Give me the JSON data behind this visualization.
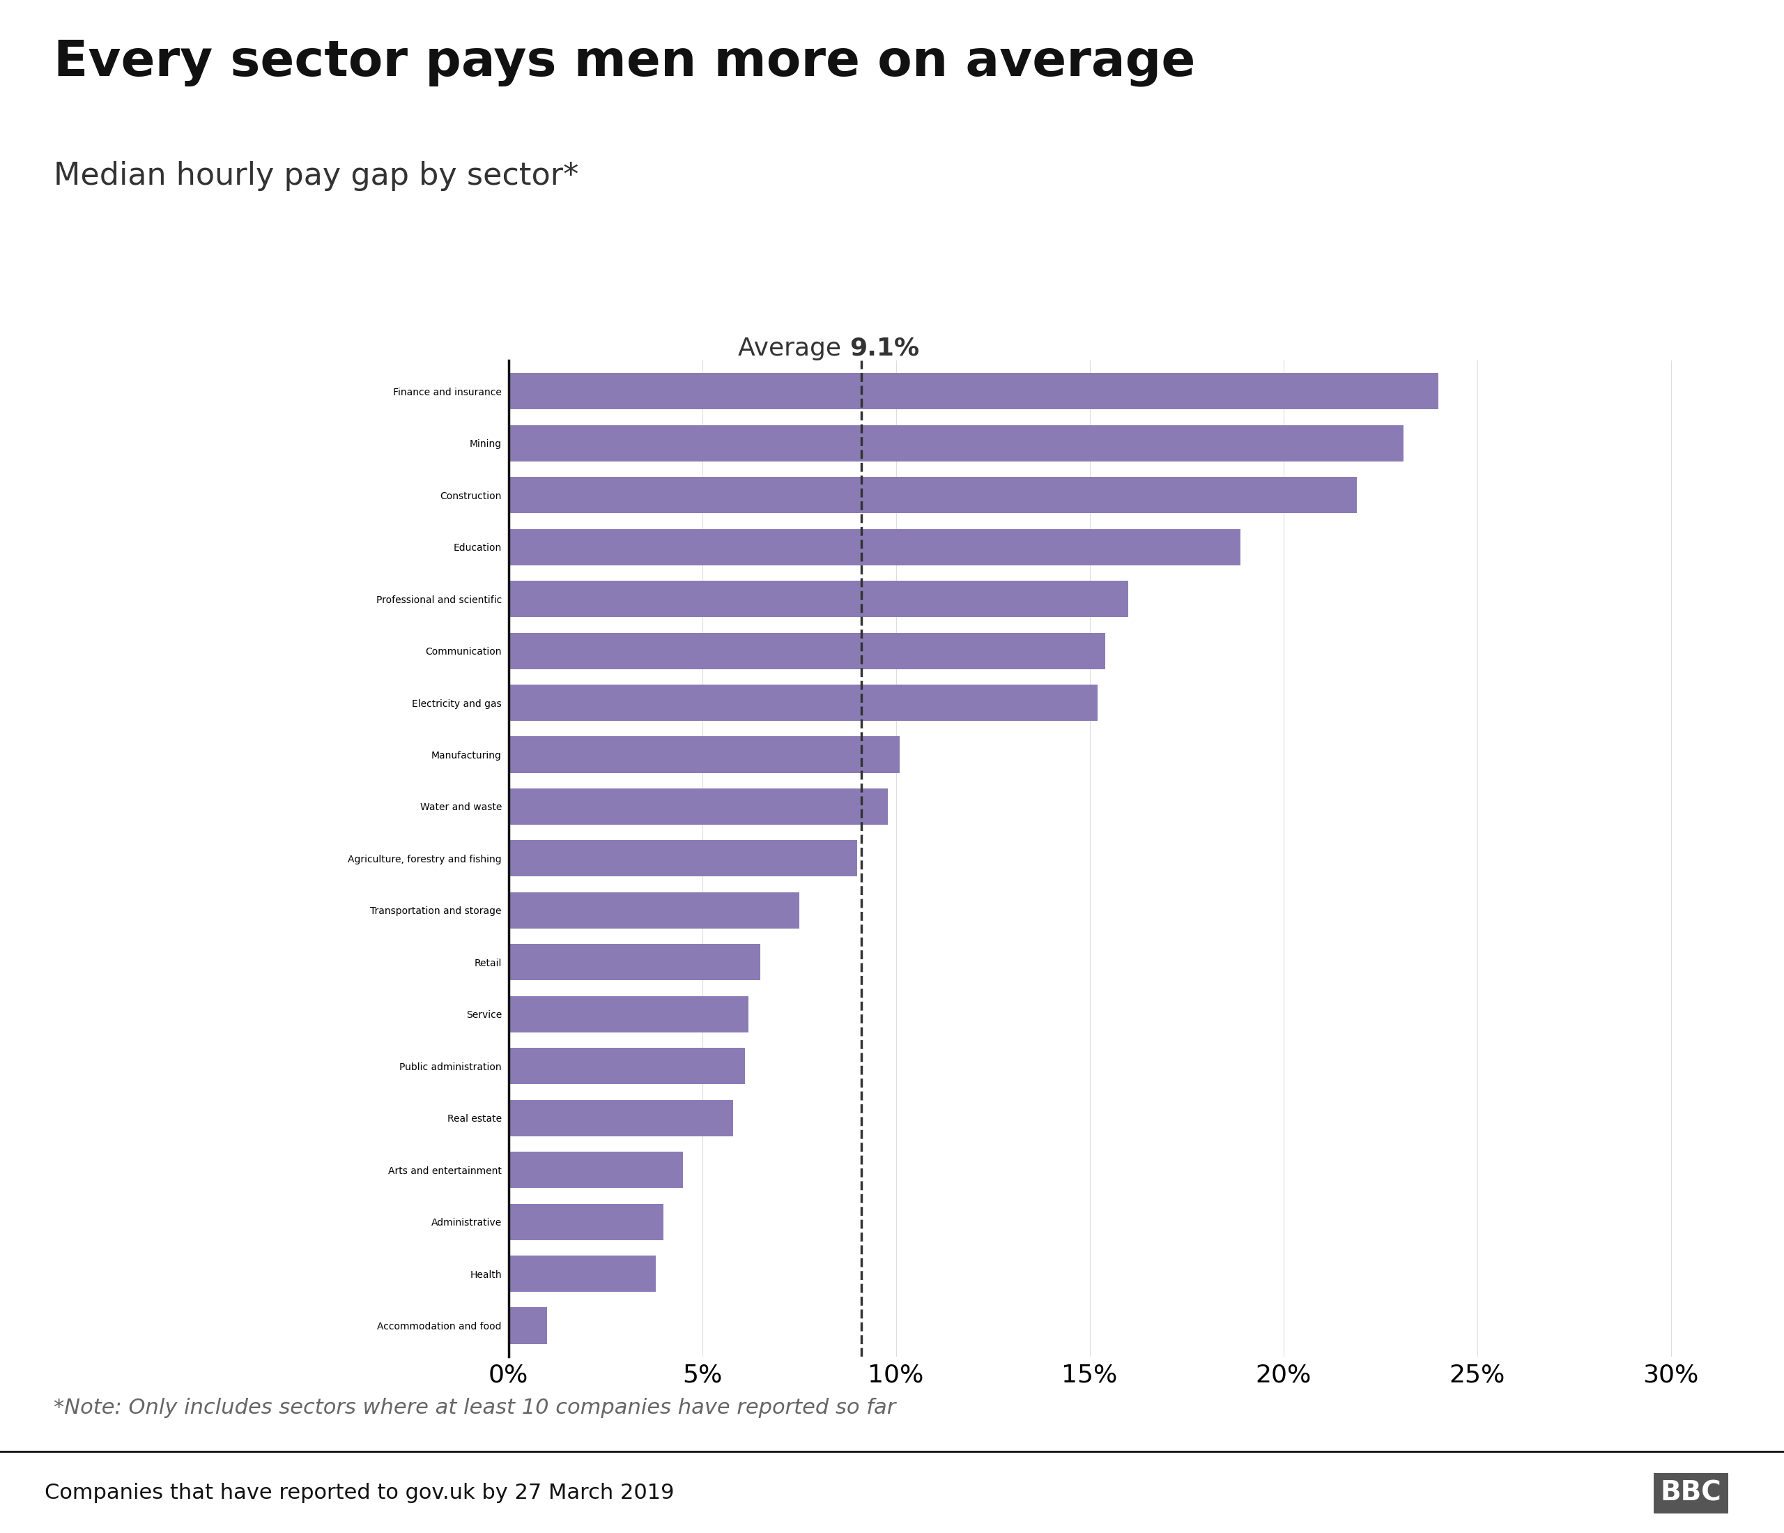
{
  "title": "Every sector pays men more on average",
  "subtitle": "Median hourly pay gap by sector*",
  "categories": [
    "Finance and insurance",
    "Mining",
    "Construction",
    "Education",
    "Professional and scientific",
    "Communication",
    "Electricity and gas",
    "Manufacturing",
    "Water and waste",
    "Agriculture, forestry and fishing",
    "Transportation and storage",
    "Retail",
    "Service",
    "Public administration",
    "Real estate",
    "Arts and entertainment",
    "Administrative",
    "Health",
    "Accommodation and food"
  ],
  "values": [
    24.0,
    23.1,
    21.9,
    18.9,
    16.0,
    15.4,
    15.2,
    10.1,
    9.8,
    9.0,
    7.5,
    6.5,
    6.2,
    6.1,
    5.8,
    4.5,
    4.0,
    3.8,
    1.0
  ],
  "bar_color": "#8B7BB5",
  "average_line": 9.1,
  "xlim": [
    0,
    32
  ],
  "xticks": [
    0,
    5,
    10,
    15,
    20,
    25,
    30
  ],
  "xtick_labels": [
    "0%",
    "5%",
    "10%",
    "15%",
    "20%",
    "25%",
    "30%"
  ],
  "footnote": "*Note: Only includes sectors where at least 10 companies have reported so far",
  "source": "Companies that have reported to gov.uk by 27 March 2019",
  "bbc_logo": "BBC",
  "title_fontsize": 52,
  "subtitle_fontsize": 32,
  "bar_label_fontsize": 26,
  "tick_fontsize": 26,
  "annot_fontsize": 26,
  "footnote_fontsize": 22,
  "source_fontsize": 22,
  "background_color": "#ffffff",
  "bar_height": 0.7,
  "spine_color": "#111111",
  "source_bar_color": "#cccccc",
  "separator_color": "#111111"
}
